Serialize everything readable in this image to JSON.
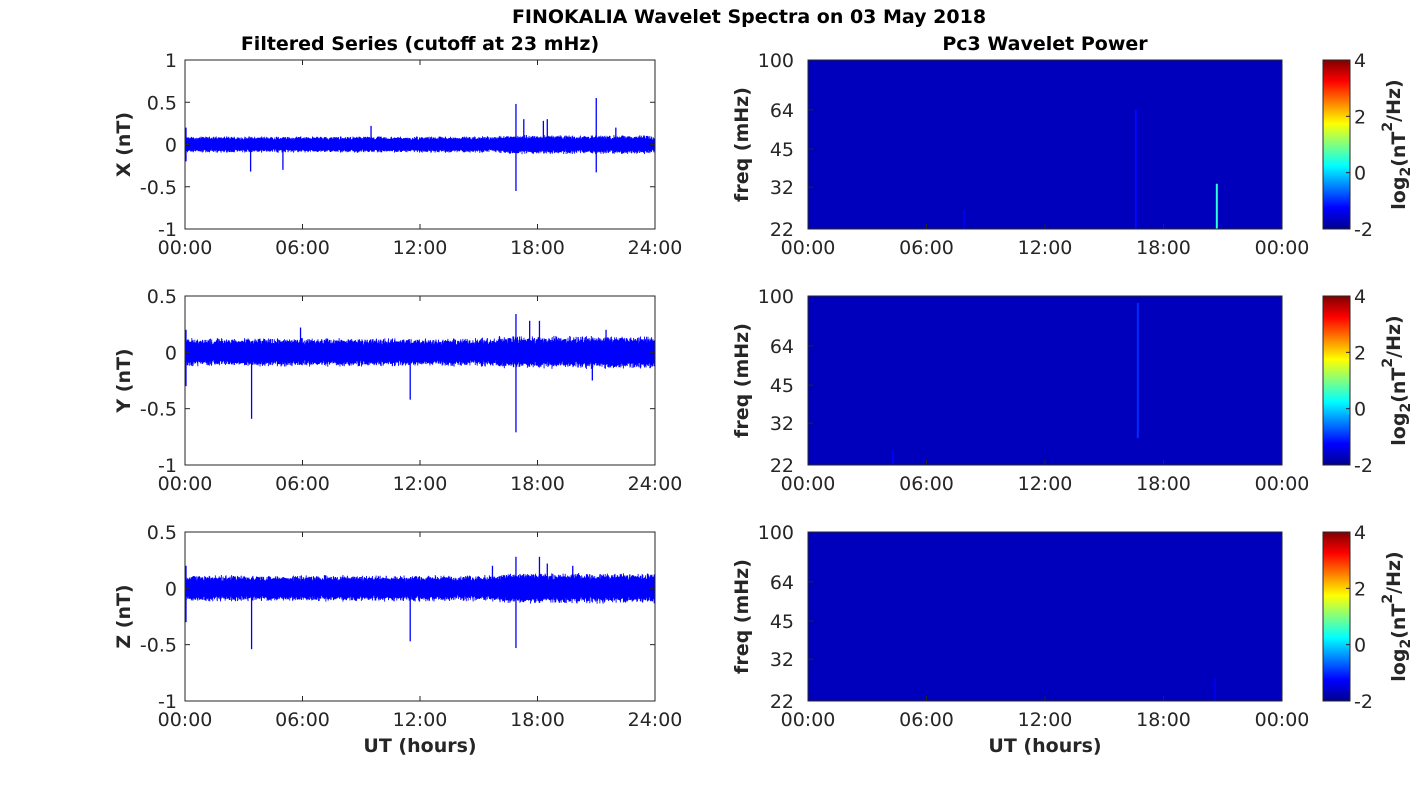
{
  "figure": {
    "title": "FINOKALIA Wavelet Spectra on 03 May 2018",
    "left_column_title": "Filtered Series (cutoff at 23 mHz)",
    "right_column_title": "Pc3 Wavelet Power",
    "x_label": "UT (hours)"
  },
  "colors": {
    "series": "#0000ff",
    "background_power": "#00008f",
    "axis": "#262626"
  },
  "chart_data": [
    {
      "type": "line",
      "component": "X",
      "ylabel": "X (nT)",
      "xlim": [
        0,
        24
      ],
      "ylim": [
        -1,
        1
      ],
      "x_ticks": [
        "00:00",
        "06:00",
        "12:00",
        "18:00",
        "24:00"
      ],
      "y_ticks": [
        "1",
        "0.5",
        "0",
        "-0.5",
        "-1"
      ],
      "baseline_noise_amplitude_nT": 0.1,
      "spikes": [
        {
          "x": 0.05,
          "y": 0.2
        },
        {
          "x": 0.05,
          "y": -0.2
        },
        {
          "x": 3.35,
          "y": -0.32
        },
        {
          "x": 5.0,
          "y": -0.3
        },
        {
          "x": 9.5,
          "y": 0.22
        },
        {
          "x": 16.9,
          "y": 0.48
        },
        {
          "x": 16.9,
          "y": -0.55
        },
        {
          "x": 17.3,
          "y": 0.3
        },
        {
          "x": 18.3,
          "y": 0.28
        },
        {
          "x": 18.5,
          "y": 0.3
        },
        {
          "x": 21.0,
          "y": 0.55
        },
        {
          "x": 21.0,
          "y": -0.33
        },
        {
          "x": 22.0,
          "y": 0.2
        }
      ]
    },
    {
      "type": "line",
      "component": "Y",
      "ylabel": "Y (nT)",
      "xlim": [
        0,
        24
      ],
      "ylim": [
        -1,
        0.5
      ],
      "x_ticks": [
        "00:00",
        "06:00",
        "12:00",
        "18:00",
        "24:00"
      ],
      "y_ticks": [
        "0.5",
        "0",
        "-0.5",
        "-1"
      ],
      "baseline_noise_amplitude_nT": 0.13,
      "spikes": [
        {
          "x": 0.05,
          "y": 0.2
        },
        {
          "x": 0.05,
          "y": -0.3
        },
        {
          "x": 3.4,
          "y": -0.59
        },
        {
          "x": 5.9,
          "y": 0.22
        },
        {
          "x": 11.5,
          "y": -0.42
        },
        {
          "x": 16.9,
          "y": 0.34
        },
        {
          "x": 16.9,
          "y": -0.71
        },
        {
          "x": 17.6,
          "y": 0.28
        },
        {
          "x": 18.1,
          "y": 0.28
        },
        {
          "x": 21.5,
          "y": 0.2
        },
        {
          "x": 20.8,
          "y": -0.25
        }
      ]
    },
    {
      "type": "line",
      "component": "Z",
      "ylabel": "Z (nT)",
      "xlim": [
        0,
        24
      ],
      "ylim": [
        -1,
        0.5
      ],
      "x_ticks": [
        "00:00",
        "06:00",
        "12:00",
        "18:00",
        "24:00"
      ],
      "y_ticks": [
        "0.5",
        "0",
        "-0.5",
        "-1"
      ],
      "baseline_noise_amplitude_nT": 0.12,
      "spikes": [
        {
          "x": 0.05,
          "y": 0.2
        },
        {
          "x": 0.05,
          "y": -0.3
        },
        {
          "x": 3.4,
          "y": -0.54
        },
        {
          "x": 11.5,
          "y": -0.47
        },
        {
          "x": 15.7,
          "y": 0.2
        },
        {
          "x": 16.9,
          "y": 0.28
        },
        {
          "x": 16.9,
          "y": -0.53
        },
        {
          "x": 18.1,
          "y": 0.28
        },
        {
          "x": 18.5,
          "y": 0.22
        },
        {
          "x": 19.8,
          "y": 0.2
        }
      ]
    },
    {
      "type": "heatmap",
      "component": "X",
      "ylabel": "freq (mHz)",
      "xlim": [
        0,
        24
      ],
      "ylim": [
        22,
        100
      ],
      "y_scale": "log",
      "x_ticks": [
        "00:00",
        "06:00",
        "12:00",
        "18:00",
        "00:00"
      ],
      "y_ticks": [
        "100",
        "64",
        "45",
        "32",
        "22"
      ],
      "colorbar": {
        "label": "log2(nT2/Hz)",
        "range": [
          -2,
          4
        ],
        "ticks": [
          "4",
          "2",
          "0",
          "-2"
        ]
      },
      "background_value": -1.7,
      "streaks": [
        {
          "t": 16.6,
          "f_low": 22,
          "f_high": 64,
          "value": -1.2
        },
        {
          "t": 20.7,
          "f_low": 22,
          "f_high": 33,
          "value": 0.5
        },
        {
          "t": 7.9,
          "f_low": 22,
          "f_high": 26,
          "value": -1.4
        }
      ]
    },
    {
      "type": "heatmap",
      "component": "Y",
      "ylabel": "freq (mHz)",
      "xlim": [
        0,
        24
      ],
      "ylim": [
        22,
        100
      ],
      "y_scale": "log",
      "x_ticks": [
        "00:00",
        "06:00",
        "12:00",
        "18:00",
        "00:00"
      ],
      "y_ticks": [
        "100",
        "64",
        "45",
        "32",
        "22"
      ],
      "colorbar": {
        "label": "log2(nT2/Hz)",
        "range": [
          -2,
          4
        ],
        "ticks": [
          "4",
          "2",
          "0",
          "-2"
        ]
      },
      "background_value": -1.7,
      "streaks": [
        {
          "t": 16.7,
          "f_low": 28,
          "f_high": 94,
          "value": -1.0
        },
        {
          "t": 4.3,
          "f_low": 22,
          "f_high": 25,
          "value": -1.3
        }
      ]
    },
    {
      "type": "heatmap",
      "component": "Z",
      "ylabel": "freq (mHz)",
      "xlim": [
        0,
        24
      ],
      "ylim": [
        22,
        100
      ],
      "y_scale": "log",
      "x_ticks": [
        "00:00",
        "06:00",
        "12:00",
        "18:00",
        "00:00"
      ],
      "y_ticks": [
        "100",
        "64",
        "45",
        "32",
        "22"
      ],
      "colorbar": {
        "label": "log2(nT2/Hz)",
        "range": [
          -2,
          4
        ],
        "ticks": [
          "4",
          "2",
          "0",
          "-2"
        ]
      },
      "background_value": -1.7,
      "streaks": [
        {
          "t": 20.6,
          "f_low": 22,
          "f_high": 27,
          "value": -1.4
        }
      ]
    }
  ]
}
